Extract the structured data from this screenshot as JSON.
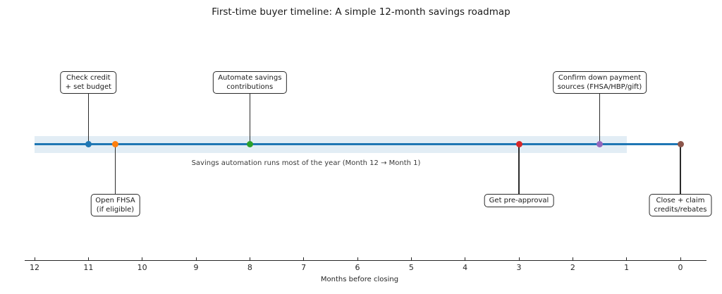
{
  "chart_data": {
    "type": "scatter",
    "title": "First-time buyer timeline: A simple 12-month savings roadmap",
    "xlabel": "Months before closing",
    "x_ticks": [
      12,
      11,
      10,
      9,
      8,
      7,
      6,
      5,
      4,
      3,
      2,
      1,
      0
    ],
    "x_axis_reversed": true,
    "xlim": [
      12.3,
      -0.6
    ],
    "line_span": [
      12,
      0
    ],
    "line_color": "#1f77b4",
    "band": {
      "from_x": 12,
      "to_x": 1,
      "color": "rgba(31,119,180,0.13)",
      "label": "Savings automation runs most of the year (Month 12 → Month 1)"
    },
    "milestones": [
      {
        "label": [
          "Check credit",
          "+ set budget"
        ],
        "x": 11,
        "color": "#1f77b4",
        "side": "above"
      },
      {
        "label": [
          "Open FHSA",
          "(if eligible)"
        ],
        "x": 10.5,
        "color": "#ff7f0e",
        "side": "below"
      },
      {
        "label": [
          "Automate savings",
          "contributions"
        ],
        "x": 8,
        "color": "#2ca02c",
        "side": "above"
      },
      {
        "label": [
          "Get pre-approval"
        ],
        "x": 3,
        "color": "#d62728",
        "side": "below"
      },
      {
        "label": [
          "Confirm down payment",
          "sources (FHSA/HBP/gift)"
        ],
        "x": 1.5,
        "color": "#9467bd",
        "side": "above"
      },
      {
        "label": [
          "Close + claim",
          "credits/rebates"
        ],
        "x": 0,
        "color": "#8c564b",
        "side": "below"
      }
    ]
  }
}
